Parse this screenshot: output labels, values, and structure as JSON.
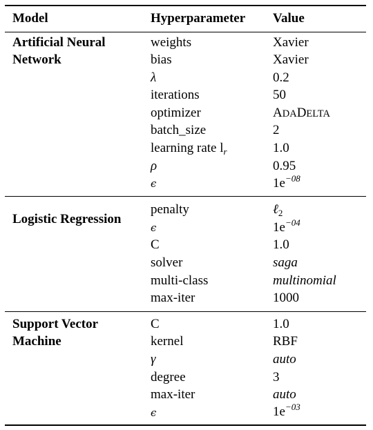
{
  "table": {
    "headers": {
      "model": "Model",
      "hyperparameter": "Hyperparameter",
      "value": "Value"
    },
    "sections": [
      {
        "model_lines": [
          "Artificial Neural",
          "Network"
        ],
        "rows": [
          {
            "param": "weights",
            "value": "Xavier"
          },
          {
            "param": "bias",
            "value": "Xavier"
          },
          {
            "param": "λ",
            "value": "0.2"
          },
          {
            "param": "iterations",
            "value": "50"
          },
          {
            "param": "optimizer",
            "value": "ADADELTA"
          },
          {
            "param": "batch_size",
            "value": "2"
          },
          {
            "param": "learning rate l",
            "param_sub": "r",
            "value": "1.0"
          },
          {
            "param": "ρ",
            "value": "0.95"
          },
          {
            "param": "ϵ",
            "value": "1e",
            "value_sup": "−08"
          }
        ]
      },
      {
        "model_lines": [
          "Logistic Regression"
        ],
        "rows": [
          {
            "param": "penalty",
            "value": "ℓ",
            "value_sub": "2"
          },
          {
            "param": "ϵ",
            "value": "1e",
            "value_sup": "−04"
          },
          {
            "param": "C",
            "value": "1.0"
          },
          {
            "param": "solver",
            "value": "saga"
          },
          {
            "param": "multi-class",
            "value": "multinomial"
          },
          {
            "param": "max-iter",
            "value": "1000"
          }
        ]
      },
      {
        "model_lines": [
          "Support Vector",
          "Machine"
        ],
        "rows": [
          {
            "param": "C",
            "value": "1.0"
          },
          {
            "param": "kernel",
            "value": "RBF"
          },
          {
            "param": "γ",
            "value": "auto"
          },
          {
            "param": "degree",
            "value": "3"
          },
          {
            "param": "max-iter",
            "value": "auto"
          },
          {
            "param": "ϵ",
            "value": "1e",
            "value_sup": "−03"
          }
        ]
      }
    ]
  }
}
